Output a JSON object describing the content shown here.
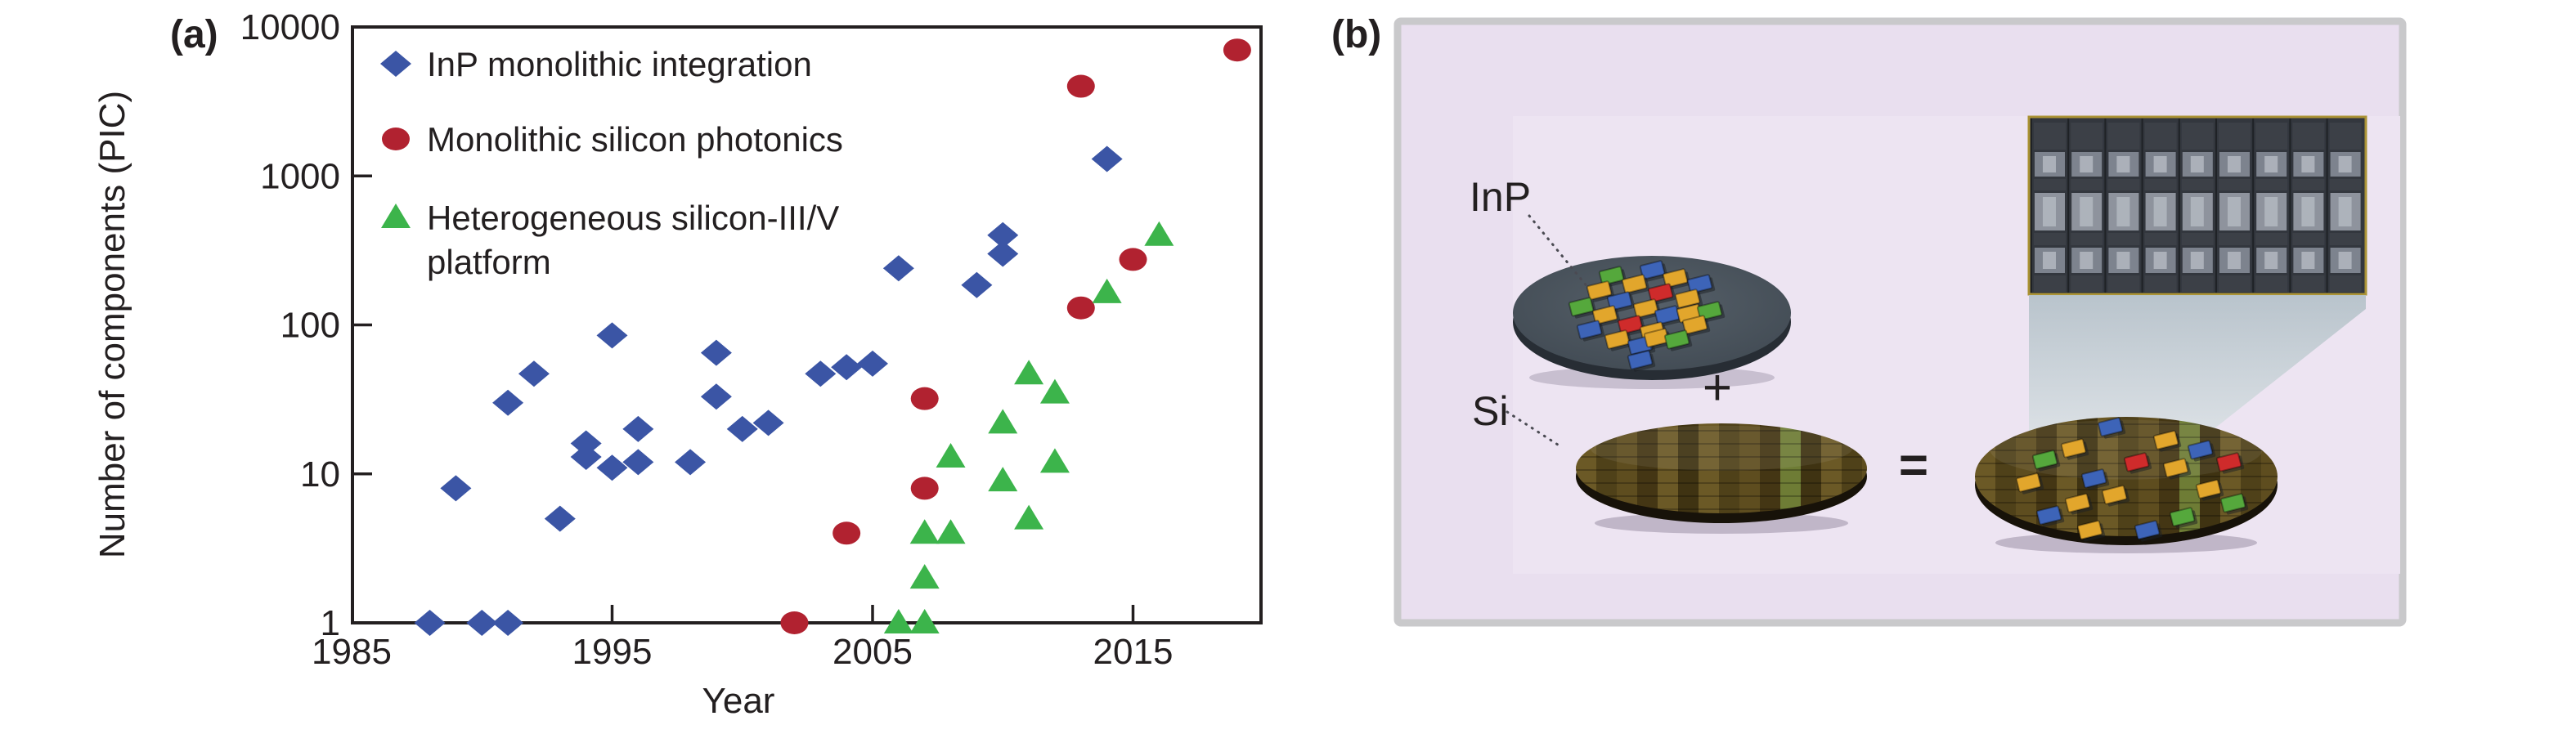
{
  "figure": {
    "panel_a_label": "(a)",
    "panel_b_label": "(b)"
  },
  "chart_data": {
    "type": "scatter",
    "title": "",
    "xlabel": "Year",
    "ylabel": "Number of components (PIC)",
    "y_scale": "log",
    "xlim": [
      1985,
      2020
    ],
    "ylim": [
      1,
      10000
    ],
    "x_ticks": [
      1985,
      1995,
      2005,
      2015
    ],
    "y_ticks": [
      1,
      10,
      100,
      1000,
      10000
    ],
    "grid": false,
    "legend_position": "top-left-inside",
    "series": [
      {
        "name": "InP monolithic integration",
        "legend_lines": [
          "InP monolithic integration"
        ],
        "marker": "diamond",
        "color": "#3B55A5",
        "points": [
          [
            1988,
            1
          ],
          [
            1990,
            1
          ],
          [
            1991,
            1
          ],
          [
            1989,
            8
          ],
          [
            1991,
            30
          ],
          [
            1992,
            47
          ],
          [
            1993,
            5
          ],
          [
            1994,
            16
          ],
          [
            1994,
            13
          ],
          [
            1995,
            11
          ],
          [
            1995,
            85
          ],
          [
            1996,
            20
          ],
          [
            1996,
            12
          ],
          [
            1998,
            12
          ],
          [
            1999,
            33
          ],
          [
            1999,
            65
          ],
          [
            2000,
            20
          ],
          [
            2001,
            22
          ],
          [
            2003,
            47
          ],
          [
            2004,
            52
          ],
          [
            2005,
            55
          ],
          [
            2006,
            240
          ],
          [
            2009,
            185
          ],
          [
            2010,
            300
          ],
          [
            2010,
            400
          ],
          [
            2014,
            1300
          ]
        ]
      },
      {
        "name": "Monolithic silicon photonics",
        "legend_lines": [
          "Monolithic silicon photonics"
        ],
        "marker": "circle",
        "color": "#B12230",
        "points": [
          [
            2002,
            1
          ],
          [
            2004,
            4
          ],
          [
            2007,
            8
          ],
          [
            2007,
            32
          ],
          [
            2013,
            130
          ],
          [
            2013,
            4000
          ],
          [
            2015,
            275
          ],
          [
            2019,
            7000
          ]
        ]
      },
      {
        "name": "Heterogeneous silicon-III/V platform",
        "legend_lines": [
          "Heterogeneous silicon-III/V",
          "platform"
        ],
        "marker": "triangle",
        "color": "#3CB44B",
        "points": [
          [
            2006,
            1
          ],
          [
            2007,
            1
          ],
          [
            2007,
            2
          ],
          [
            2007,
            4
          ],
          [
            2008,
            4
          ],
          [
            2008,
            13
          ],
          [
            2010,
            9
          ],
          [
            2010,
            22
          ],
          [
            2011,
            5
          ],
          [
            2011,
            47
          ],
          [
            2012,
            12
          ],
          [
            2012,
            35
          ],
          [
            2014,
            165
          ],
          [
            2016,
            400
          ]
        ]
      }
    ]
  },
  "panel_b": {
    "inp_label": "InP",
    "si_label": "Si",
    "plus_sign": "+",
    "equals_sign": "=",
    "colors": {
      "panel_bg": "#E9DFEF",
      "panel_inner_bg": "#EDE4F2",
      "panel_border": "#C9C9CB",
      "chip_yellow": "#E2A62C",
      "chip_blue": "#3D64B8",
      "chip_red": "#CF2B2B",
      "chip_green": "#55A83C",
      "inp_wafer": "#4B545E",
      "inp_wafer_rim": "#272D34",
      "si_wafer_rim": "#171209",
      "sem_bg": "#33373E",
      "sem_border": "#AB9335",
      "axis": "#231F20"
    }
  }
}
